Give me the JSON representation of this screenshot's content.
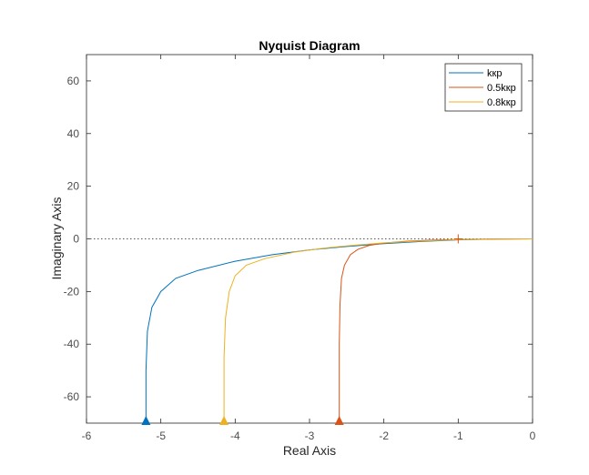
{
  "chart_data": {
    "type": "line",
    "title": "Nyquist Diagram",
    "xlabel": "Real Axis",
    "ylabel": "Imaginary Axis",
    "xlim": [
      -6,
      0
    ],
    "ylim": [
      -70,
      70
    ],
    "xticks": [
      -6,
      -5,
      -4,
      -3,
      -2,
      -1,
      0
    ],
    "yticks": [
      -60,
      -40,
      -20,
      0,
      20,
      40,
      60
    ],
    "grid": false,
    "legend_position": "top-right",
    "zero_line": "dotted",
    "critical_point": [
      -1,
      0
    ],
    "series": [
      {
        "name": "kкр",
        "color": "#0072BD",
        "x": [
          -5.2,
          -5.2,
          -5.18,
          -5.12,
          -5.0,
          -4.8,
          -4.5,
          -4.0,
          -3.5,
          -3.0,
          -2.5,
          -2.0,
          -1.5,
          -1.0,
          -0.5,
          0
        ],
        "y": [
          -70,
          -50,
          -35,
          -26,
          -20,
          -15,
          -12,
          -8.5,
          -6,
          -4.2,
          -2.9,
          -1.8,
          -1.0,
          -0.4,
          -0.1,
          0
        ]
      },
      {
        "name": "0.5kкр",
        "color": "#D95319",
        "x": [
          -2.6,
          -2.6,
          -2.59,
          -2.57,
          -2.53,
          -2.45,
          -2.35,
          -2.2,
          -2.0,
          -1.7,
          -1.4,
          -1.0,
          -0.5,
          0
        ],
        "y": [
          -70,
          -40,
          -25,
          -15,
          -10,
          -6,
          -4,
          -2.5,
          -1.6,
          -0.9,
          -0.5,
          -0.2,
          -0.05,
          0
        ]
      },
      {
        "name": "0.8kкр",
        "color": "#EDB120",
        "x": [
          -4.15,
          -4.15,
          -4.13,
          -4.08,
          -4.0,
          -3.85,
          -3.6,
          -3.2,
          -2.8,
          -2.4,
          -2.0,
          -1.5,
          -1.0,
          -0.5,
          0
        ],
        "y": [
          -70,
          -45,
          -30,
          -20,
          -14,
          -10,
          -7.5,
          -5,
          -3.5,
          -2.4,
          -1.5,
          -0.8,
          -0.3,
          -0.1,
          0
        ]
      }
    ]
  }
}
